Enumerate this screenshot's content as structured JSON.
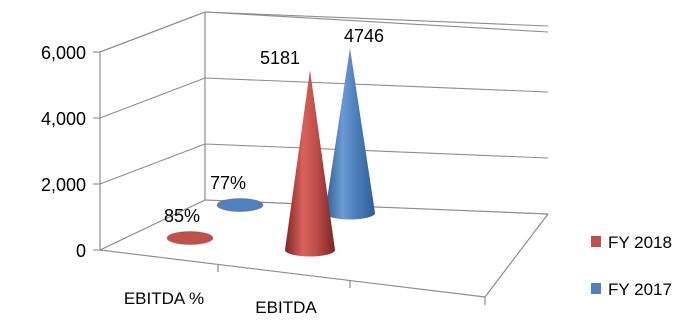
{
  "chart_data": {
    "type": "bar",
    "style": "3d-cone",
    "categories": [
      "EBITDA %",
      "EBITDA"
    ],
    "series": [
      {
        "name": "FY 2018",
        "color": "#c0504d",
        "values": [
          85,
          5181
        ],
        "data_labels": [
          "85%",
          "5181"
        ]
      },
      {
        "name": "FY 2017",
        "color": "#4f81bd",
        "values": [
          77,
          4746
        ],
        "data_labels": [
          "77%",
          "4746"
        ]
      }
    ],
    "yticks": [
      "0",
      "2,000",
      "4,000",
      "6,000"
    ],
    "ylim": [
      0,
      8000
    ],
    "grid": true,
    "legend": "right"
  }
}
